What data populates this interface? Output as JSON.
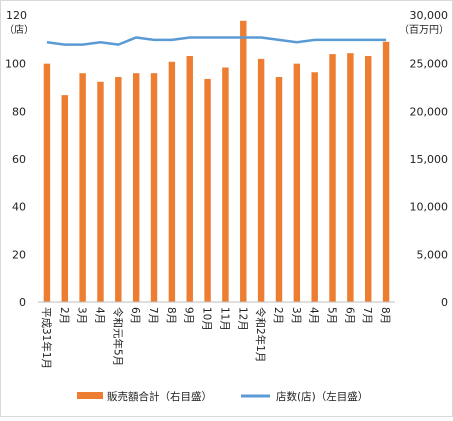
{
  "chart_data": {
    "type": "bar",
    "left_axis": {
      "label_value": "120",
      "label_unit": "（店）",
      "ticks": [
        "0",
        "20",
        "40",
        "60",
        "80",
        "100",
        "120"
      ],
      "ylim": [
        0,
        120
      ]
    },
    "right_axis": {
      "label_value": "30,000",
      "label_unit": "（百万円）",
      "ticks": [
        "0",
        "5,000",
        "10,000",
        "15,000",
        "20,000",
        "25,000",
        "30,000"
      ],
      "ylim": [
        0,
        30000
      ]
    },
    "categories": [
      "平成31年1月",
      "2月",
      "3月",
      "4月",
      "令和元年5月",
      "6月",
      "7月",
      "8月",
      "9月",
      "10月",
      "11月",
      "12月",
      "令和2年1月",
      "2月",
      "3月",
      "4月",
      "5月",
      "6月",
      "7月",
      "8月"
    ],
    "series": [
      {
        "name": "販売額合計（右目盛）",
        "type": "bar",
        "axis": "right",
        "color": "#ED7D31",
        "values": [
          25000,
          21700,
          24000,
          23100,
          23600,
          24000,
          24000,
          25200,
          25800,
          23400,
          24600,
          29500,
          25500,
          23600,
          25000,
          24100,
          26000,
          26100,
          25800,
          27300
        ]
      },
      {
        "name": "店数(店)（左目盛）",
        "type": "line",
        "axis": "left",
        "color": "#5B9BD5",
        "values": [
          109,
          108,
          108,
          109,
          108,
          111,
          110,
          110,
          111,
          111,
          111,
          111,
          111,
          110,
          109,
          110,
          110,
          110,
          110,
          110
        ]
      }
    ],
    "legend_position": "bottom",
    "grid": false
  }
}
